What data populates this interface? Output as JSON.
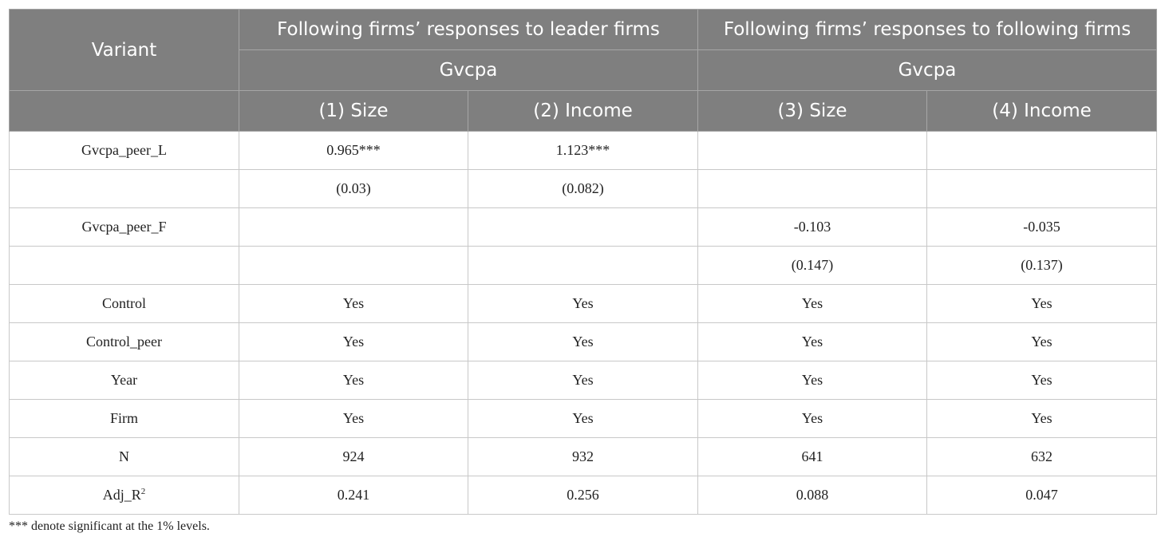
{
  "header": {
    "variant_label": "Variant",
    "group1_title": "Following firms’ responses to leader firms",
    "group2_title": "Following firms’ responses to following firms",
    "group1_dep": "Gvcpa",
    "group2_dep": "Gvcpa",
    "columns": [
      "(1) Size",
      "(2) Income",
      "(3) Size",
      "(4) Income"
    ]
  },
  "rows": [
    {
      "label": "Gvcpa_peer_L",
      "cells": [
        "0.965***",
        "1.123***",
        "",
        ""
      ]
    },
    {
      "label": "",
      "cells": [
        "(0.03)",
        "(0.082)",
        "",
        ""
      ]
    },
    {
      "label": "Gvcpa_peer_F",
      "cells": [
        "",
        "",
        "-0.103",
        "-0.035"
      ]
    },
    {
      "label": "",
      "cells": [
        "",
        "",
        "(0.147)",
        "(0.137)"
      ]
    },
    {
      "label": "Control",
      "cells": [
        "Yes",
        "Yes",
        "Yes",
        "Yes"
      ]
    },
    {
      "label": "Control_peer",
      "cells": [
        "Yes",
        "Yes",
        "Yes",
        "Yes"
      ]
    },
    {
      "label": "Year",
      "cells": [
        "Yes",
        "Yes",
        "Yes",
        "Yes"
      ]
    },
    {
      "label": "Firm",
      "cells": [
        "Yes",
        "Yes",
        "Yes",
        "Yes"
      ]
    },
    {
      "label": "N",
      "cells": [
        "924",
        "932",
        "641",
        "632"
      ]
    },
    {
      "label": "Adj_R",
      "label_sup": "2",
      "cells": [
        "0.241",
        "0.256",
        "0.088",
        "0.047"
      ]
    }
  ],
  "note": "*** denote significant at the 1% levels."
}
